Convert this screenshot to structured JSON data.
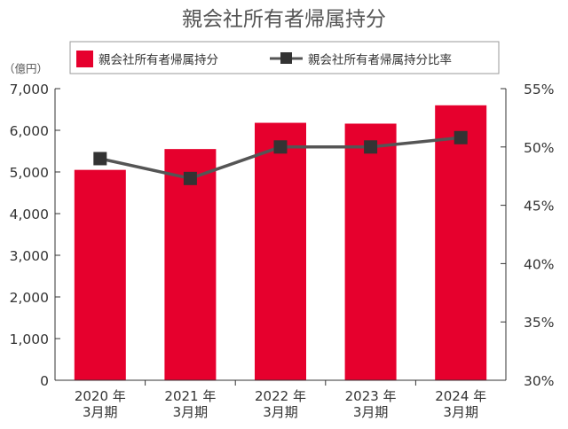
{
  "chart_data": {
    "type": "bar",
    "title": "親会社所有者帰属持分",
    "y_unit_label": "（億円）",
    "categories": [
      [
        "2020 年",
        "3月期"
      ],
      [
        "2021 年",
        "3月期"
      ],
      [
        "2022 年",
        "3月期"
      ],
      [
        "2023 年",
        "3月期"
      ],
      [
        "2024 年",
        "3月期"
      ]
    ],
    "series": [
      {
        "name": "親会社所有者帰属持分",
        "type": "bar",
        "axis": "left",
        "color": "#e6002d",
        "values": [
          5050,
          5550,
          6180,
          6160,
          6600
        ]
      },
      {
        "name": "親会社所有者帰属持分比率",
        "type": "line",
        "axis": "right",
        "color": "#555555",
        "marker_color": "#333333",
        "values": [
          49.0,
          47.3,
          50.0,
          50.0,
          50.8
        ]
      }
    ],
    "y_left": {
      "min": 0,
      "max": 7000,
      "ticks": [
        0,
        1000,
        2000,
        3000,
        4000,
        5000,
        6000,
        7000
      ],
      "tick_labels": [
        "0",
        "1,000",
        "2,000",
        "3,000",
        "4,000",
        "5,000",
        "6,000",
        "7,000"
      ]
    },
    "y_right": {
      "min": 30,
      "max": 55,
      "ticks": [
        30,
        35,
        40,
        45,
        50,
        55
      ],
      "tick_labels": [
        "30%",
        "35%",
        "40%",
        "45%",
        "50%",
        "55%"
      ]
    },
    "grid": false,
    "legend_position": "top"
  }
}
